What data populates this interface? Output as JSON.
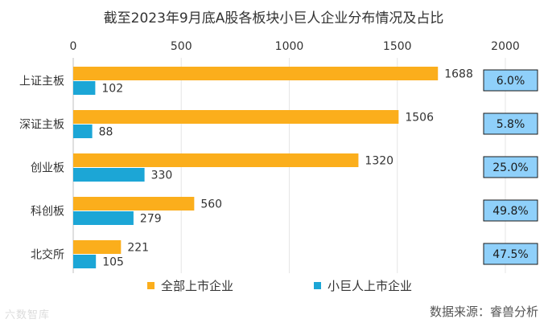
{
  "chart_data": {
    "type": "bar",
    "orientation": "horizontal",
    "title": "截至2023年9月底A股各板块小巨人企业分布情况及占比",
    "categories": [
      "上证主板",
      "深证主板",
      "创业板",
      "科创板",
      "北交所"
    ],
    "series": [
      {
        "name": "全部上市企业",
        "values": [
          1688,
          1506,
          1320,
          560,
          221
        ],
        "color": "#FBAE1C"
      },
      {
        "name": "小巨人上市企业",
        "values": [
          102,
          88,
          330,
          279,
          105
        ],
        "color": "#1CA6D6"
      }
    ],
    "ratios": [
      "6.0%",
      "5.8%",
      "25.0%",
      "49.8%",
      "47.5%"
    ],
    "xlim": [
      0,
      2000
    ],
    "xticks": [
      0,
      500,
      1000,
      1500,
      2000
    ],
    "xaxis_position": "top",
    "grid": true,
    "legend_position": "bottom",
    "ratio_box_color": "#8FD0FA"
  },
  "source": "数据来源：睿兽分析",
  "watermark": "六数智库"
}
